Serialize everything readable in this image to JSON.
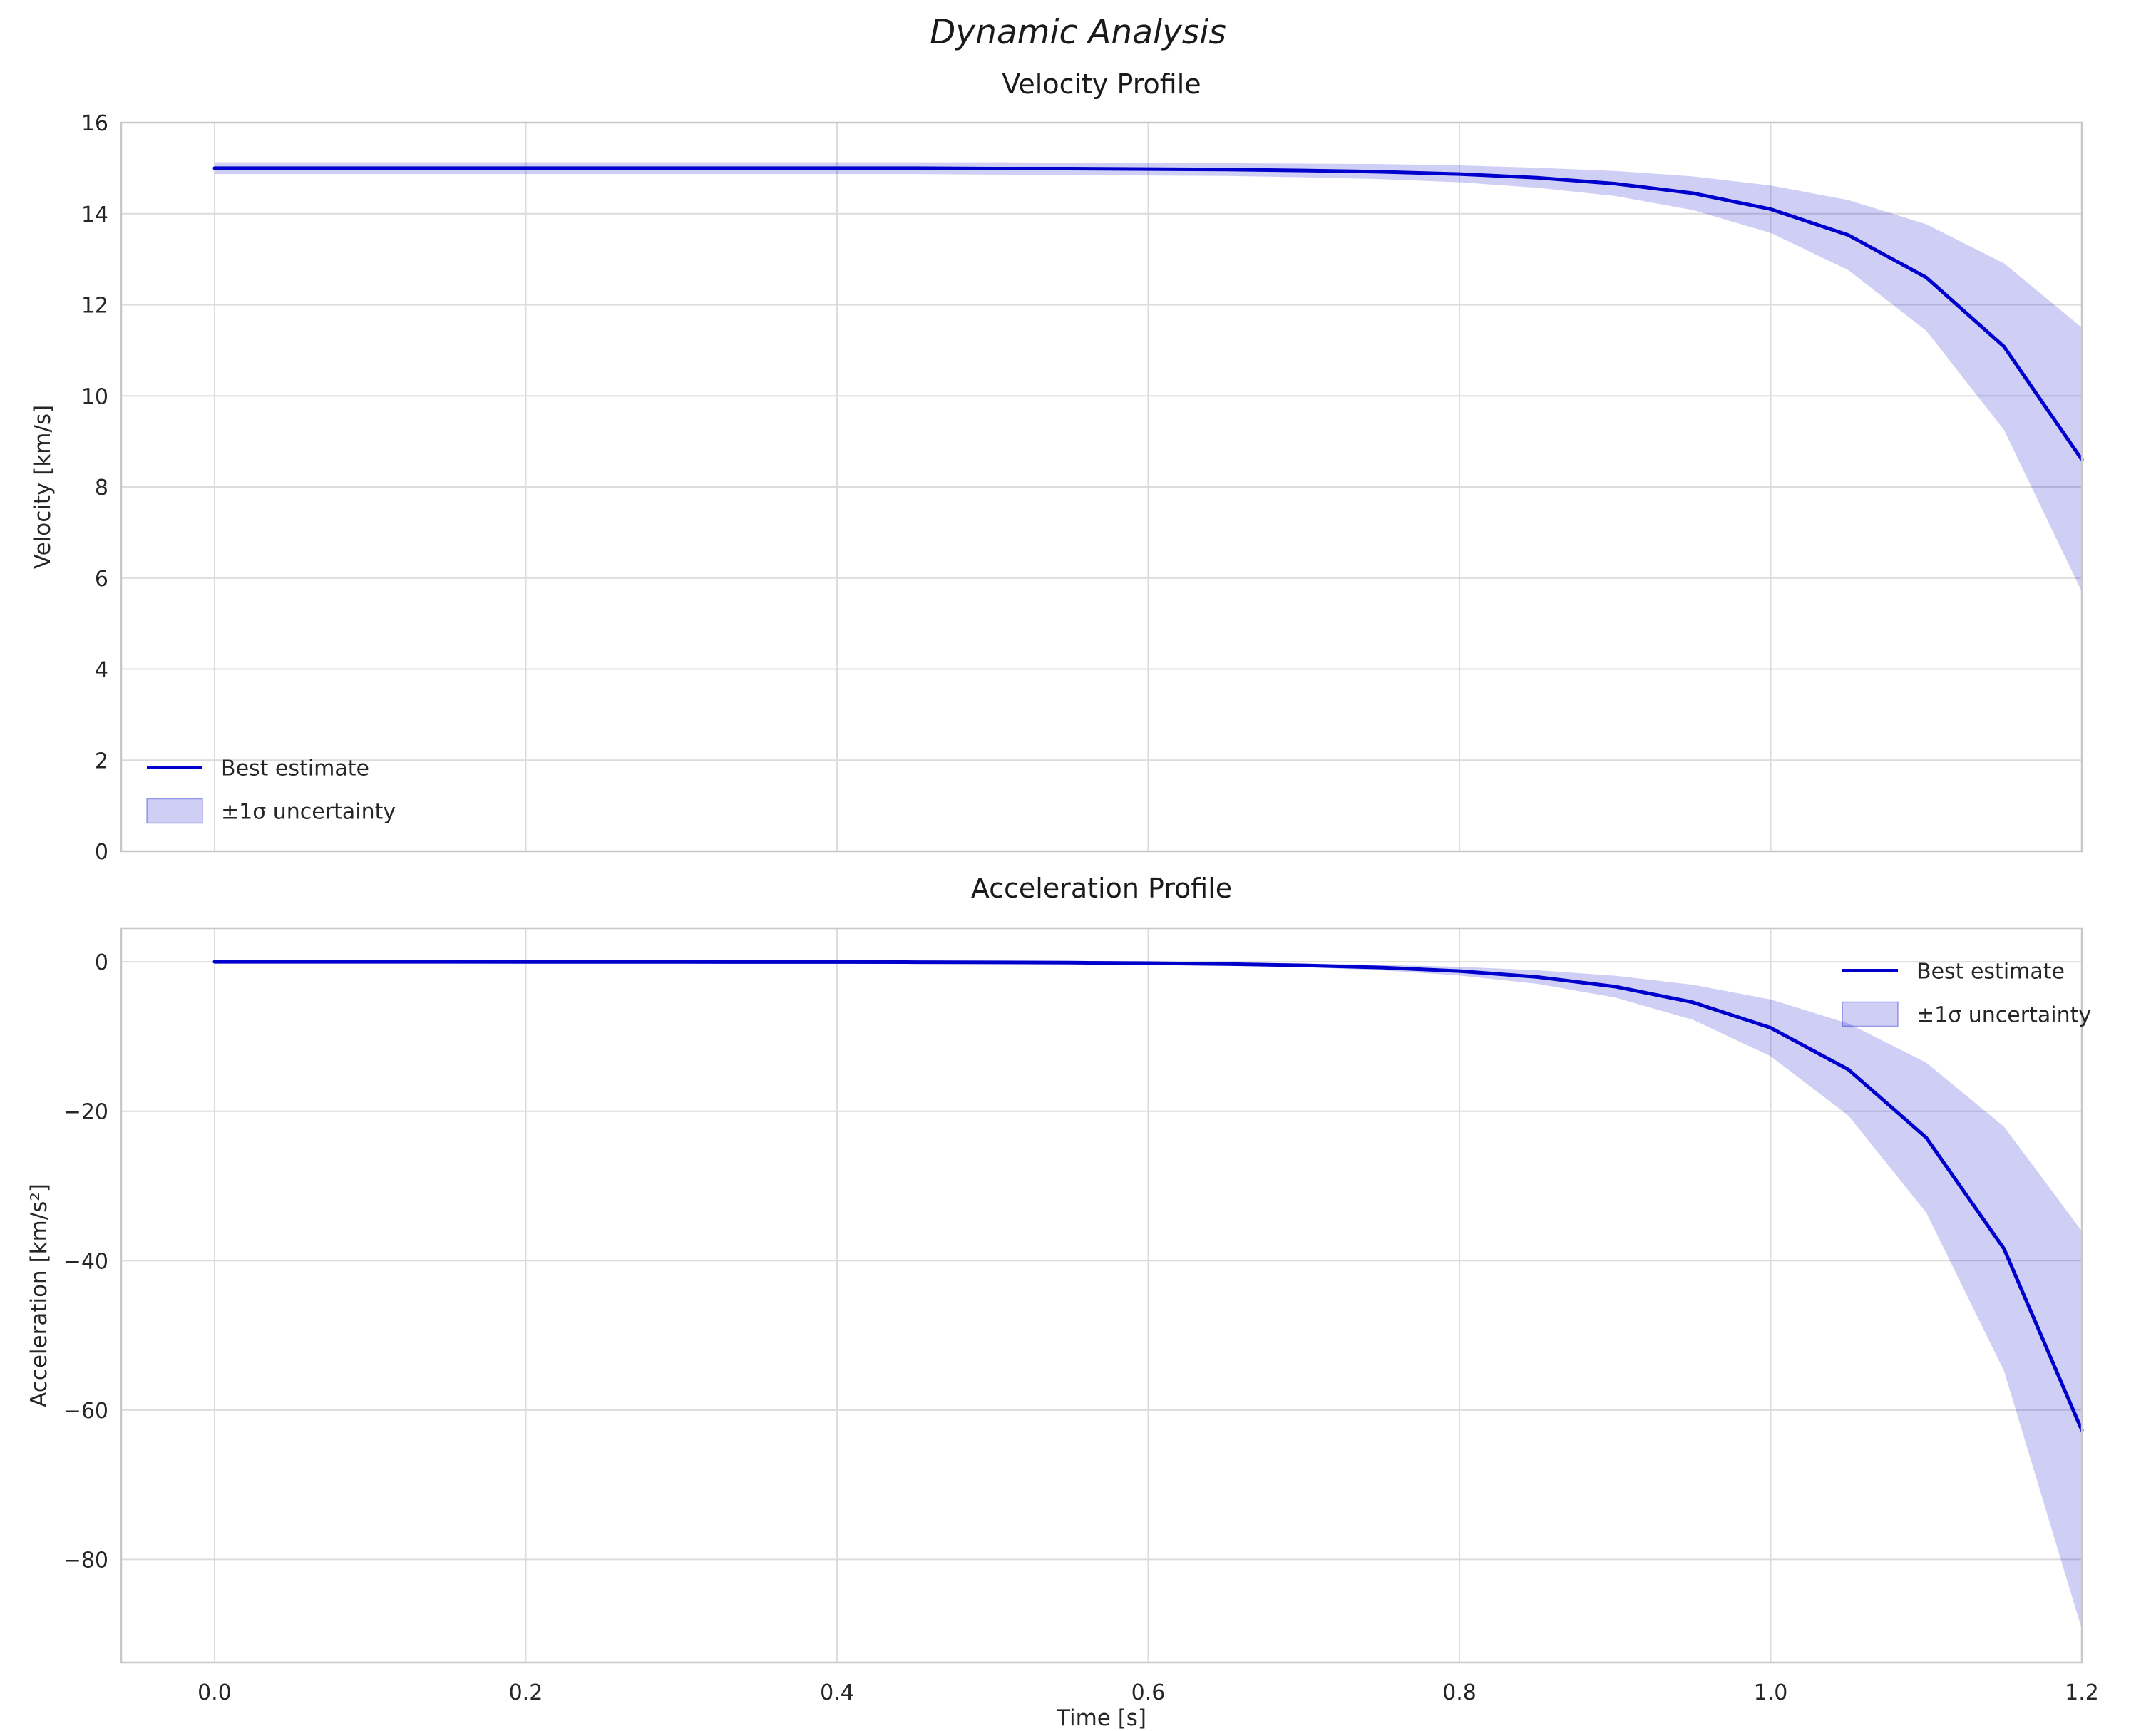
{
  "figure": {
    "suptitle": "Dynamic Analysis"
  },
  "colors": {
    "line": "#0000cd",
    "band_fill": "rgba(0,0,205,0.19)",
    "band_edge": "rgba(0,0,205,0.35)",
    "grid": "#dcdcdc",
    "frame": "#c8c8c8",
    "tick_text": "#262626",
    "title_text": "#1a1a1a"
  },
  "chart_data": [
    {
      "type": "line",
      "title": "Velocity Profile",
      "ylabel": "Velocity [km/s]",
      "xlabel": "",
      "x": [
        0,
        0.05,
        0.1,
        0.15,
        0.2,
        0.25,
        0.3,
        0.35,
        0.4,
        0.45,
        0.5,
        0.55,
        0.6,
        0.65,
        0.7,
        0.75,
        0.8,
        0.85,
        0.9,
        0.95,
        1.0,
        1.05,
        1.1,
        1.15,
        1.2
      ],
      "series": [
        {
          "name": "Best estimate",
          "values": [
            15.0,
            15.0,
            15.0,
            15.0,
            15.0,
            15.0,
            15.0,
            15.0,
            15.0,
            15.0,
            14.99,
            14.99,
            14.98,
            14.97,
            14.95,
            14.92,
            14.87,
            14.79,
            14.66,
            14.45,
            14.1,
            13.53,
            12.6,
            11.08,
            8.6
          ]
        }
      ],
      "band": {
        "name": "±1σ uncertainty",
        "upper": [
          15.13,
          15.13,
          15.13,
          15.13,
          15.13,
          15.13,
          15.13,
          15.13,
          15.13,
          15.13,
          15.13,
          15.12,
          15.12,
          15.11,
          15.1,
          15.09,
          15.06,
          15.01,
          14.94,
          14.82,
          14.62,
          14.3,
          13.77,
          12.91,
          11.5
        ],
        "lower": [
          14.87,
          14.87,
          14.87,
          14.87,
          14.87,
          14.87,
          14.87,
          14.87,
          14.87,
          14.87,
          14.86,
          14.85,
          14.84,
          14.83,
          14.8,
          14.76,
          14.69,
          14.57,
          14.39,
          14.08,
          13.58,
          12.76,
          11.43,
          9.25,
          5.7
        ]
      },
      "xlim": [
        -0.06,
        1.2
      ],
      "ylim": [
        0,
        16
      ],
      "xticks": {
        "values": [
          0,
          0.2,
          0.4,
          0.6,
          0.8,
          1.0,
          1.2
        ],
        "labels": [
          "0.0",
          "0.2",
          "0.4",
          "0.6",
          "0.8",
          "1.0",
          "1.2"
        ]
      },
      "yticks": {
        "values": [
          0,
          2,
          4,
          6,
          8,
          10,
          12,
          14,
          16
        ],
        "labels": [
          "0",
          "2",
          "4",
          "6",
          "8",
          "10",
          "12",
          "14",
          "16"
        ]
      },
      "grid": true,
      "legend_position": "lower-left"
    },
    {
      "type": "line",
      "title": "Acceleration Profile",
      "ylabel": "Acceleration [km/s²]",
      "xlabel": "Time [s]",
      "x": [
        0,
        0.05,
        0.1,
        0.15,
        0.2,
        0.25,
        0.3,
        0.35,
        0.4,
        0.45,
        0.5,
        0.55,
        0.6,
        0.65,
        0.7,
        0.75,
        0.8,
        0.85,
        0.9,
        0.95,
        1.0,
        1.05,
        1.1,
        1.15,
        1.2
      ],
      "series": [
        {
          "name": "Best estimate",
          "values": [
            0.0,
            0.0,
            0.0,
            0.0,
            -0.01,
            -0.01,
            -0.01,
            -0.02,
            -0.02,
            -0.04,
            -0.07,
            -0.11,
            -0.18,
            -0.29,
            -0.47,
            -0.76,
            -1.24,
            -2.03,
            -3.31,
            -5.41,
            -8.83,
            -14.42,
            -23.53,
            -38.42,
            -62.7
          ]
        }
      ],
      "band": {
        "name": "±1σ uncertainty",
        "upper": [
          0.05,
          0.05,
          0.05,
          0.05,
          0.04,
          0.04,
          0.04,
          0.03,
          0.03,
          0.02,
          0.01,
          -0.01,
          -0.05,
          -0.12,
          -0.22,
          -0.39,
          -0.67,
          -1.12,
          -1.86,
          -3.06,
          -5.03,
          -8.25,
          -13.49,
          -22.07,
          -36.05
        ],
        "lower": [
          -0.05,
          -0.05,
          -0.05,
          -0.06,
          -0.06,
          -0.06,
          -0.07,
          -0.07,
          -0.08,
          -0.1,
          -0.14,
          -0.21,
          -0.31,
          -0.46,
          -0.71,
          -1.13,
          -1.82,
          -2.94,
          -4.77,
          -7.75,
          -12.63,
          -20.59,
          -33.57,
          -54.77,
          -89.35
        ]
      },
      "xlim": [
        -0.06,
        1.2
      ],
      "ylim": [
        -93.8,
        4.5
      ],
      "xticks": {
        "values": [
          0,
          0.2,
          0.4,
          0.6,
          0.8,
          1.0,
          1.2
        ],
        "labels": [
          "0.0",
          "0.2",
          "0.4",
          "0.6",
          "0.8",
          "1.0",
          "1.2"
        ]
      },
      "yticks": {
        "values": [
          0,
          -20,
          -40,
          -60,
          -80
        ],
        "labels": [
          "0",
          "−20",
          "−40",
          "−60",
          "−80"
        ]
      },
      "grid": true,
      "legend_position": "upper-right"
    }
  ]
}
